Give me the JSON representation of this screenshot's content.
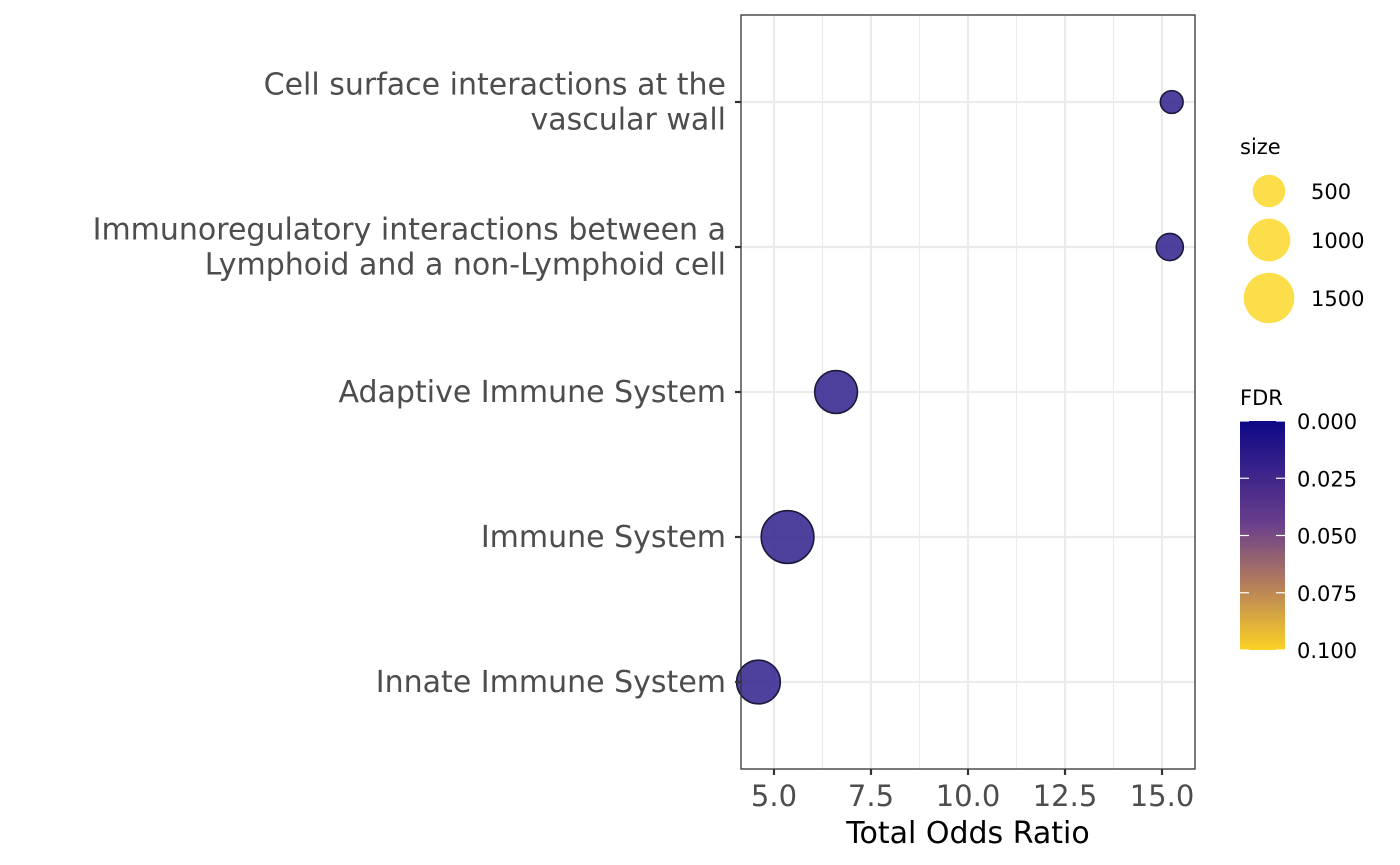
{
  "chart_data": {
    "type": "scatter",
    "xlabel": "Total Odds Ratio",
    "ylabel": "",
    "title": "",
    "xlim": [
      4.15,
      15.85
    ],
    "x_ticks": [
      5.0,
      7.5,
      10.0,
      12.5,
      15.0
    ],
    "x_tick_labels": [
      "5.0",
      "7.5",
      "10.0",
      "12.5",
      "15.0"
    ],
    "grid": true,
    "legend_position": "right",
    "categories": [
      [
        "Cell surface interactions at the",
        "vascular wall"
      ],
      [
        "Immunoregulatory interactions between a",
        "Lymphoid and a non-Lymphoid cell"
      ],
      [
        "Adaptive Immune System"
      ],
      [
        "Immune System"
      ],
      [
        "Innate Immune System"
      ]
    ],
    "points": [
      {
        "x": 15.25,
        "size": 180,
        "fdr": 0.02
      },
      {
        "x": 15.2,
        "size": 300,
        "fdr": 0.02
      },
      {
        "x": 6.6,
        "size": 1000,
        "fdr": 0.02
      },
      {
        "x": 5.35,
        "size": 1650,
        "fdr": 0.02
      },
      {
        "x": 4.6,
        "size": 1050,
        "fdr": 0.02
      }
    ],
    "size_legend": {
      "title": "size",
      "values": [
        500,
        1000,
        1500
      ],
      "labels": [
        "500",
        "1000",
        "1500"
      ],
      "color": "#fcd82a"
    },
    "color_legend": {
      "title": "FDR",
      "range": [
        0.0,
        0.1
      ],
      "ticks": [
        0.0,
        0.025,
        0.05,
        0.075,
        0.1
      ],
      "tick_labels": [
        "0.000",
        "0.025",
        "0.050",
        "0.075",
        "0.100"
      ],
      "low_color": "#0d0887",
      "mid_color": "#7e4e8a",
      "high_color": "#fcd225"
    },
    "point_fill": "#3b2c94",
    "point_stroke": "#1a1a3a"
  }
}
